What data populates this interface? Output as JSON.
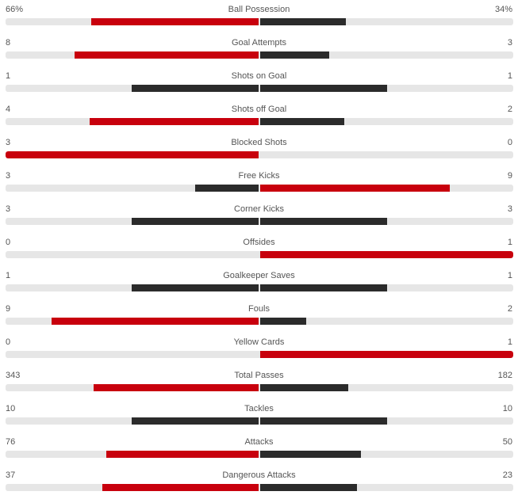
{
  "colors": {
    "leading": "#c8000d",
    "trailing": "#2b2b2b",
    "track": "#e6e6e6"
  },
  "stats": [
    {
      "label": "Ball Possession",
      "home": "66%",
      "away": "34%",
      "home_value": 66,
      "away_value": 34
    },
    {
      "label": "Goal Attempts",
      "home": "8",
      "away": "3",
      "home_value": 8,
      "away_value": 3
    },
    {
      "label": "Shots on Goal",
      "home": "1",
      "away": "1",
      "home_value": 1,
      "away_value": 1
    },
    {
      "label": "Shots off Goal",
      "home": "4",
      "away": "2",
      "home_value": 4,
      "away_value": 2
    },
    {
      "label": "Blocked Shots",
      "home": "3",
      "away": "0",
      "home_value": 3,
      "away_value": 0
    },
    {
      "label": "Free Kicks",
      "home": "3",
      "away": "9",
      "home_value": 3,
      "away_value": 9
    },
    {
      "label": "Corner Kicks",
      "home": "3",
      "away": "3",
      "home_value": 3,
      "away_value": 3
    },
    {
      "label": "Offsides",
      "home": "0",
      "away": "1",
      "home_value": 0,
      "away_value": 1
    },
    {
      "label": "Goalkeeper Saves",
      "home": "1",
      "away": "1",
      "home_value": 1,
      "away_value": 1
    },
    {
      "label": "Fouls",
      "home": "9",
      "away": "2",
      "home_value": 9,
      "away_value": 2
    },
    {
      "label": "Yellow Cards",
      "home": "0",
      "away": "1",
      "home_value": 0,
      "away_value": 1
    },
    {
      "label": "Total Passes",
      "home": "343",
      "away": "182",
      "home_value": 343,
      "away_value": 182
    },
    {
      "label": "Tackles",
      "home": "10",
      "away": "10",
      "home_value": 10,
      "away_value": 10
    },
    {
      "label": "Attacks",
      "home": "76",
      "away": "50",
      "home_value": 76,
      "away_value": 50
    },
    {
      "label": "Dangerous Attacks",
      "home": "37",
      "away": "23",
      "home_value": 37,
      "away_value": 23
    }
  ]
}
